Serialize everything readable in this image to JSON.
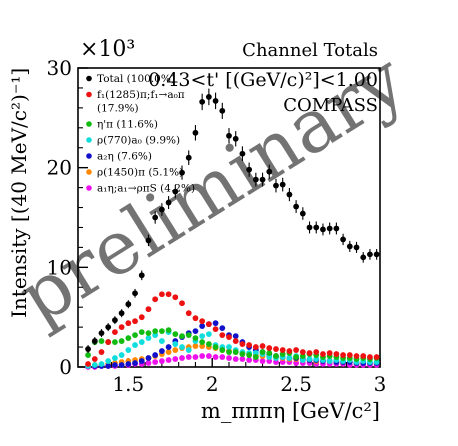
{
  "chart_data": {
    "type": "scatter",
    "title": "Channel Totals",
    "subtitle": "0.43<t' [(GeV/c)²]<1.00",
    "experiment": "COMPASS",
    "watermark": "preliminary",
    "multiplier": "×10³",
    "xlabel": "m_πππη [GeV/c²]",
    "ylabel": "Intensity [(40 MeV/c²)⁻¹]",
    "xlim": [
      1.2,
      3.0
    ],
    "ylim": [
      0,
      30
    ],
    "x_ticks": [
      1.5,
      2,
      2.5,
      3
    ],
    "x_tick_labels": [
      "1.5",
      "2",
      "2.5",
      "3"
    ],
    "y_ticks": [
      0,
      10,
      20,
      30
    ],
    "y_tick_labels": [
      "0",
      "10",
      "20",
      "30"
    ],
    "legend_position": "top-left",
    "series": [
      {
        "name": "Total (100.0%)",
        "color": "#000000",
        "error_bars": true,
        "x": [
          1.26,
          1.3,
          1.34,
          1.38,
          1.42,
          1.46,
          1.5,
          1.54,
          1.58,
          1.62,
          1.66,
          1.7,
          1.74,
          1.78,
          1.82,
          1.86,
          1.9,
          1.94,
          1.98,
          2.02,
          2.06,
          2.1,
          2.14,
          2.18,
          2.22,
          2.26,
          2.3,
          2.34,
          2.38,
          2.42,
          2.46,
          2.5,
          2.54,
          2.58,
          2.62,
          2.66,
          2.7,
          2.74,
          2.78,
          2.82,
          2.86,
          2.9,
          2.94,
          2.98
        ],
        "y": [
          1.8,
          2.6,
          3.4,
          4.0,
          4.7,
          5.4,
          6.3,
          7.4,
          9.2,
          12.7,
          15.0,
          15.8,
          16.5,
          17.6,
          19.5,
          21.0,
          23.5,
          26.6,
          27.1,
          26.7,
          25.7,
          23.2,
          22.9,
          21.4,
          19.8,
          18.8,
          18.8,
          19.6,
          18.2,
          18.3,
          17.3,
          16.1,
          15.4,
          14.0,
          14.0,
          13.8,
          13.9,
          13.9,
          12.8,
          12.1,
          12.0,
          11.0,
          11.3,
          11.3
        ]
      },
      {
        "name": "f₁(1285)π;f₁→a₀π (17.9%)",
        "color": "#ee1111",
        "x": [
          1.26,
          1.3,
          1.34,
          1.38,
          1.42,
          1.46,
          1.5,
          1.54,
          1.58,
          1.62,
          1.66,
          1.7,
          1.74,
          1.78,
          1.82,
          1.86,
          1.9,
          1.94,
          1.98,
          2.02,
          2.06,
          2.1,
          2.14,
          2.18,
          2.22,
          2.26,
          2.3,
          2.34,
          2.38,
          2.42,
          2.46,
          2.5,
          2.54,
          2.58,
          2.62,
          2.66,
          2.7,
          2.74,
          2.78,
          2.82,
          2.86,
          2.9,
          2.94,
          2.98
        ],
        "y": [
          0.3,
          0.8,
          1.5,
          2.5,
          3.5,
          4.0,
          4.4,
          4.6,
          5.0,
          5.8,
          6.8,
          7.3,
          7.3,
          7.0,
          6.4,
          5.4,
          4.9,
          4.6,
          4.3,
          3.8,
          3.2,
          3.0,
          2.6,
          2.3,
          2.2,
          2.0,
          2.1,
          1.9,
          1.8,
          1.7,
          1.6,
          1.7,
          1.5,
          1.4,
          1.5,
          1.3,
          1.4,
          1.3,
          1.2,
          1.2,
          1.1,
          1.1,
          1.0,
          1.0
        ]
      },
      {
        "name": "η'π (11.6%)",
        "color": "#11bb11",
        "x": [
          1.26,
          1.3,
          1.34,
          1.38,
          1.42,
          1.46,
          1.5,
          1.54,
          1.58,
          1.62,
          1.66,
          1.7,
          1.74,
          1.78,
          1.82,
          1.86,
          1.9,
          1.94,
          1.98,
          2.02,
          2.06,
          2.1,
          2.14,
          2.18,
          2.22,
          2.26,
          2.3,
          2.34,
          2.38,
          2.42,
          2.46,
          2.5,
          2.54,
          2.58,
          2.62,
          2.66,
          2.7,
          2.74,
          2.78,
          2.82,
          2.86,
          2.9,
          2.94,
          2.98
        ],
        "y": [
          1.2,
          2.5,
          2.6,
          2.5,
          2.5,
          2.6,
          2.9,
          3.2,
          3.5,
          3.4,
          3.6,
          3.6,
          3.7,
          3.3,
          3.1,
          3.2,
          2.9,
          2.5,
          2.3,
          2.0,
          1.7,
          1.5,
          1.5,
          1.3,
          1.2,
          1.0,
          1.5,
          1.4,
          1.1,
          1.3,
          1.4,
          1.0,
          1.1,
          1.3,
          1.2,
          1.0,
          1.1,
          1.0,
          0.9,
          0.9,
          0.8,
          0.9,
          0.8,
          0.9
        ]
      },
      {
        "name": "ρ(770)a₀ (9.9%)",
        "color": "#11dddd",
        "x": [
          1.26,
          1.3,
          1.34,
          1.38,
          1.42,
          1.46,
          1.5,
          1.54,
          1.58,
          1.62,
          1.66,
          1.7,
          1.74,
          1.78,
          1.82,
          1.86,
          1.9,
          1.94,
          1.98,
          2.02,
          2.06,
          2.1,
          2.14,
          2.18,
          2.22,
          2.26,
          2.3,
          2.34,
          2.38,
          2.42,
          2.46,
          2.5,
          2.54,
          2.58,
          2.62,
          2.66,
          2.7,
          2.74,
          2.78,
          2.82,
          2.86,
          2.9,
          2.94,
          2.98
        ],
        "y": [
          0.1,
          0.2,
          0.3,
          0.6,
          0.9,
          1.2,
          1.7,
          2.2,
          2.5,
          2.9,
          3.2,
          2.6,
          3.5,
          2.3,
          2.0,
          1.7,
          2.6,
          3.1,
          3.3,
          2.2,
          2.0,
          2.0,
          1.7,
          1.5,
          1.4,
          1.4,
          1.3,
          1.0,
          0.9,
          1.0,
          0.9,
          1.1,
          0.7,
          0.8,
          0.8,
          0.7,
          0.6,
          0.7,
          0.6,
          0.7,
          0.5,
          0.6,
          0.5,
          0.5
        ]
      },
      {
        "name": "a₂η (7.6%)",
        "color": "#1111cc",
        "x": [
          1.26,
          1.3,
          1.34,
          1.38,
          1.42,
          1.46,
          1.5,
          1.54,
          1.58,
          1.62,
          1.66,
          1.7,
          1.74,
          1.78,
          1.82,
          1.86,
          1.9,
          1.94,
          1.98,
          2.02,
          2.06,
          2.1,
          2.14,
          2.18,
          2.22,
          2.26,
          2.3,
          2.34,
          2.38,
          2.42,
          2.46,
          2.5,
          2.54,
          2.58,
          2.62,
          2.66,
          2.7,
          2.74,
          2.78,
          2.82,
          2.86,
          2.9,
          2.94,
          2.98
        ],
        "y": [
          0.1,
          0.1,
          0.1,
          0.1,
          0.2,
          0.2,
          0.3,
          0.4,
          0.6,
          0.9,
          1.2,
          1.6,
          2.0,
          2.6,
          3.0,
          3.4,
          3.6,
          4.1,
          4.3,
          4.4,
          3.9,
          3.2,
          3.1,
          2.5,
          2.0,
          1.7,
          1.5,
          1.3,
          1.1,
          1.0,
          0.9,
          0.9,
          0.8,
          0.7,
          0.7,
          0.6,
          0.6,
          0.5,
          0.5,
          0.5,
          0.4,
          0.4,
          0.4,
          0.4
        ]
      },
      {
        "name": "ρ(1450)π (5.1%)",
        "color": "#ff8800",
        "x": [
          1.26,
          1.3,
          1.34,
          1.38,
          1.42,
          1.46,
          1.5,
          1.54,
          1.58,
          1.62,
          1.66,
          1.7,
          1.74,
          1.78,
          1.82,
          1.86,
          1.9,
          1.94,
          1.98,
          2.02,
          2.06,
          2.1,
          2.14,
          2.18,
          2.22,
          2.26,
          2.3,
          2.34,
          2.38,
          2.42,
          2.46,
          2.5,
          2.54,
          2.58,
          2.62,
          2.66,
          2.7,
          2.74,
          2.78,
          2.82,
          2.86,
          2.9,
          2.94,
          2.98
        ],
        "y": [
          0.1,
          0.2,
          0.2,
          0.3,
          0.4,
          0.5,
          0.6,
          0.7,
          0.8,
          0.9,
          1.1,
          1.3,
          1.5,
          1.7,
          1.9,
          2.0,
          2.1,
          2.1,
          2.0,
          1.9,
          1.7,
          1.6,
          1.5,
          1.4,
          1.3,
          1.2,
          1.1,
          1.0,
          1.0,
          0.9,
          0.8,
          0.8,
          0.7,
          0.7,
          0.6,
          0.6,
          0.6,
          0.5,
          0.5,
          0.5,
          0.4,
          0.4,
          0.4,
          0.4
        ]
      },
      {
        "name": "a₁η;a₁→ρπS (4.2%)",
        "color": "#ee11ee",
        "x": [
          1.26,
          1.3,
          1.34,
          1.38,
          1.42,
          1.46,
          1.5,
          1.54,
          1.58,
          1.62,
          1.66,
          1.7,
          1.74,
          1.78,
          1.82,
          1.86,
          1.9,
          1.94,
          1.98,
          2.02,
          2.06,
          2.1,
          2.14,
          2.18,
          2.22,
          2.26,
          2.3,
          2.34,
          2.38,
          2.42,
          2.46,
          2.5,
          2.54,
          2.58,
          2.62,
          2.66,
          2.7,
          2.74,
          2.78,
          2.82,
          2.86,
          2.9,
          2.94,
          2.98
        ],
        "y": [
          0.0,
          0.0,
          0.1,
          0.1,
          0.1,
          0.2,
          0.2,
          0.3,
          0.3,
          0.4,
          0.5,
          0.6,
          0.7,
          0.8,
          0.9,
          1.0,
          1.0,
          1.1,
          1.1,
          1.0,
          1.0,
          0.9,
          0.8,
          0.8,
          0.7,
          0.7,
          0.6,
          0.6,
          0.5,
          0.5,
          0.5,
          0.4,
          0.4,
          0.4,
          0.3,
          0.3,
          0.3,
          0.3,
          0.3,
          0.2,
          0.2,
          0.2,
          0.2,
          0.2
        ]
      }
    ]
  }
}
